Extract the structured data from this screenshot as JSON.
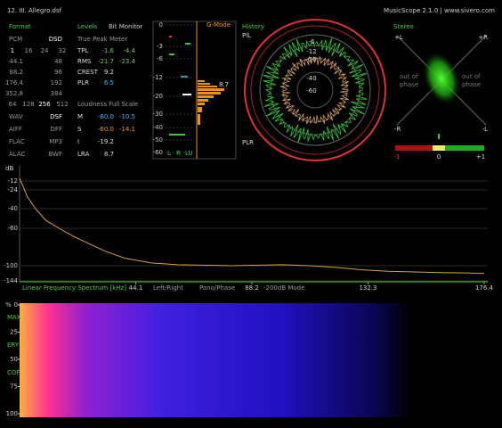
{
  "header": {
    "file": "12. III. Allegro.dsf",
    "app": "MusicScope 2.1.0 | www.sivero.com"
  },
  "format": {
    "title": "Format",
    "head": [
      "PCM",
      "DSD"
    ],
    "rates": [
      [
        "1",
        "16",
        "24",
        "32"
      ],
      [
        "44.1",
        "48"
      ],
      [
        "88.2",
        "96"
      ],
      [
        "176.4",
        "192"
      ],
      [
        "352.8",
        "384"
      ],
      [
        "64",
        "128",
        "256",
        "512"
      ]
    ],
    "files": [
      [
        "WAV",
        "DSF"
      ],
      [
        "AIFF",
        "DFF"
      ],
      [
        "FLAC",
        "MP3"
      ],
      [
        "ALAC",
        "BWF"
      ]
    ]
  },
  "levels": {
    "title": "Levels",
    "bit_monitor": "Bit Monitor",
    "tp_title": "True Peak Meter",
    "tp_rows": [
      [
        "TPL",
        "-1.6",
        "-4.4"
      ],
      [
        "RMS",
        "-21.7",
        "-23.4"
      ],
      [
        "CREST",
        "9.2"
      ],
      [
        "PLR",
        "6.5"
      ]
    ],
    "lu_title": "Loudness Full Scale",
    "lu_rows": [
      [
        "M",
        "-60.0",
        "-10.5"
      ],
      [
        "S",
        "-60.0",
        "-14.1"
      ],
      [
        "I",
        "-19.2"
      ],
      [
        "LRA",
        "8.7"
      ]
    ]
  },
  "gmode": {
    "title": "G-Mode",
    "scale": [
      "0",
      "-3",
      "-6",
      "-12",
      "-20",
      "-30",
      "-40",
      "-50",
      "-60"
    ],
    "value": "8.7",
    "channels": [
      "L",
      "R",
      "LU"
    ]
  },
  "history": {
    "title": "History",
    "top": "PlL",
    "bottom": "PLR",
    "rings": [
      "-6",
      "-12",
      "-20",
      "-40",
      "-60"
    ]
  },
  "stereo": {
    "title": "Stereo",
    "corners": [
      "+L",
      "+R",
      "-R",
      "-L"
    ],
    "left": [
      "out of",
      "phase"
    ],
    "right": [
      "out of",
      "phase"
    ],
    "correlation": [
      "-1",
      "0",
      "+1"
    ]
  },
  "spectrum": {
    "type": "line",
    "y_unit": "dB",
    "x_label": "Linear Frequency Spectrum [kHz]",
    "buttons": [
      "Left/Right",
      "Pano/Phase",
      "-200dB Mode"
    ],
    "color": "#d9a040",
    "x": [
      0,
      3,
      6,
      10,
      15,
      20,
      26,
      33,
      40,
      50,
      60,
      80,
      100,
      110,
      120,
      130,
      140,
      150,
      160,
      176.4
    ],
    "values": [
      -8,
      -30,
      -40,
      -52,
      -60,
      -68,
      -76,
      -85,
      -92,
      -97,
      -99,
      -100,
      -99,
      -100,
      -105,
      -112,
      -116,
      -118,
      -120,
      -122
    ],
    "xlim": [
      0,
      176.4
    ],
    "xticks": [
      44.1,
      88.2,
      132.3,
      176.4
    ],
    "yticks": [
      -12,
      -24,
      -40,
      -60,
      -100,
      -144
    ]
  },
  "spectrogram": {
    "unit": "%",
    "yticks": [
      0,
      25,
      50,
      75,
      100
    ],
    "markers": [
      "MAX",
      "ERY",
      "COF"
    ]
  }
}
